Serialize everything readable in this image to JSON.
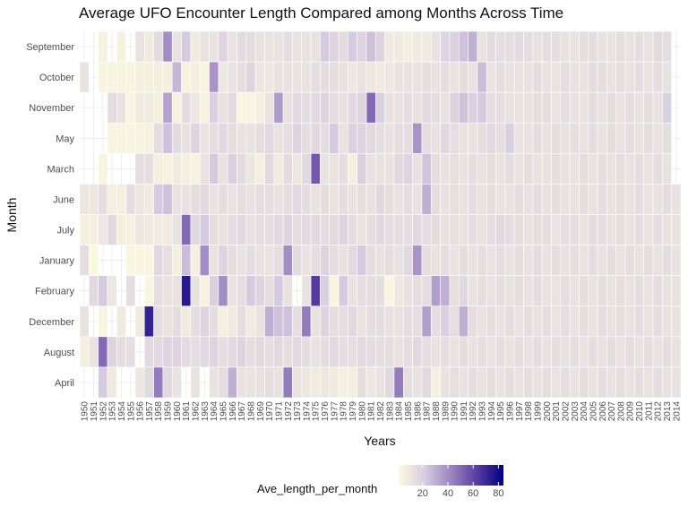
{
  "chart_data": {
    "type": "heatmap",
    "title": "Average UFO Encounter Length Compared among Months Across Time",
    "xlabel": "Years",
    "ylabel": "Month",
    "months": [
      "September",
      "October",
      "November",
      "May",
      "March",
      "June",
      "July",
      "January",
      "February",
      "December",
      "August",
      "April"
    ],
    "years": [
      1950,
      1951,
      1952,
      1953,
      1954,
      1955,
      1956,
      1957,
      1958,
      1959,
      1960,
      1961,
      1962,
      1963,
      1964,
      1965,
      1966,
      1967,
      1968,
      1969,
      1970,
      1971,
      1972,
      1973,
      1974,
      1975,
      1976,
      1977,
      1978,
      1979,
      1980,
      1981,
      1982,
      1983,
      1984,
      1985,
      1986,
      1987,
      1988,
      1989,
      1990,
      1991,
      1992,
      1993,
      1994,
      1995,
      1996,
      1997,
      1998,
      1999,
      2000,
      2001,
      2002,
      2003,
      2004,
      2005,
      2006,
      2007,
      2008,
      2009,
      2010,
      2011,
      2012,
      2013,
      2014
    ],
    "xlim": [
      1950,
      2014
    ],
    "values": {
      "September": [
        null,
        null,
        5,
        null,
        5,
        null,
        12,
        8,
        15,
        40,
        12,
        22,
        8,
        12,
        12,
        18,
        12,
        15,
        14,
        12,
        12,
        12,
        14,
        12,
        12,
        12,
        22,
        18,
        15,
        22,
        18,
        25,
        18,
        8,
        8,
        6,
        8,
        8,
        12,
        18,
        20,
        25,
        30,
        12,
        15,
        14,
        14,
        15,
        14,
        12,
        14,
        14,
        12,
        12,
        14,
        14,
        12,
        12,
        14,
        12,
        14,
        12,
        15,
        14,
        null
      ],
      "October": [
        12,
        null,
        4,
        4,
        4,
        4,
        6,
        6,
        6,
        6,
        28,
        5,
        6,
        4,
        38,
        10,
        12,
        14,
        18,
        10,
        10,
        12,
        12,
        12,
        12,
        14,
        14,
        14,
        12,
        10,
        12,
        10,
        8,
        10,
        12,
        12,
        12,
        14,
        12,
        14,
        12,
        14,
        12,
        26,
        12,
        14,
        12,
        12,
        12,
        14,
        12,
        12,
        14,
        12,
        12,
        14,
        14,
        12,
        14,
        12,
        14,
        12,
        14,
        12,
        null
      ],
      "November": [
        null,
        null,
        null,
        15,
        12,
        3,
        8,
        8,
        6,
        34,
        5,
        15,
        10,
        5,
        20,
        12,
        15,
        4,
        4,
        6,
        12,
        36,
        12,
        16,
        14,
        16,
        18,
        14,
        12,
        16,
        18,
        50,
        20,
        12,
        12,
        14,
        12,
        16,
        14,
        12,
        18,
        25,
        20,
        22,
        14,
        14,
        12,
        12,
        12,
        14,
        14,
        12,
        14,
        12,
        12,
        14,
        12,
        14,
        12,
        14,
        12,
        14,
        12,
        20,
        null
      ],
      "May": [
        null,
        null,
        null,
        4,
        4,
        4,
        5,
        5,
        14,
        25,
        15,
        12,
        18,
        12,
        14,
        16,
        14,
        12,
        12,
        14,
        16,
        12,
        14,
        18,
        14,
        16,
        14,
        22,
        12,
        20,
        18,
        16,
        14,
        12,
        14,
        14,
        38,
        14,
        12,
        16,
        14,
        12,
        12,
        14,
        16,
        14,
        20,
        12,
        12,
        14,
        12,
        14,
        12,
        14,
        12,
        14,
        12,
        14,
        12,
        14,
        12,
        14,
        12,
        14,
        null
      ],
      "March": [
        null,
        null,
        3,
        null,
        null,
        null,
        14,
        14,
        6,
        5,
        8,
        6,
        5,
        12,
        22,
        12,
        20,
        15,
        10,
        6,
        16,
        8,
        15,
        10,
        16,
        55,
        12,
        12,
        14,
        6,
        20,
        12,
        12,
        12,
        16,
        18,
        12,
        24,
        14,
        12,
        14,
        12,
        14,
        12,
        14,
        12,
        14,
        12,
        14,
        12,
        12,
        14,
        12,
        12,
        14,
        12,
        14,
        12,
        14,
        12,
        14,
        12,
        14,
        12,
        null
      ],
      "June": [
        10,
        10,
        14,
        6,
        6,
        14,
        10,
        8,
        22,
        25,
        12,
        12,
        14,
        16,
        12,
        14,
        12,
        14,
        12,
        14,
        14,
        12,
        14,
        16,
        14,
        12,
        14,
        12,
        14,
        12,
        14,
        12,
        16,
        14,
        12,
        14,
        12,
        30,
        14,
        12,
        14,
        12,
        14,
        12,
        14,
        12,
        12,
        14,
        12,
        14,
        12,
        14,
        12,
        12,
        14,
        12,
        14,
        12,
        14,
        12,
        14,
        12,
        12,
        14,
        12
      ],
      "July": [
        6,
        6,
        10,
        16,
        6,
        6,
        10,
        8,
        8,
        8,
        12,
        50,
        16,
        22,
        14,
        12,
        14,
        16,
        12,
        14,
        14,
        16,
        18,
        14,
        16,
        16,
        14,
        16,
        18,
        14,
        12,
        14,
        16,
        14,
        14,
        14,
        16,
        14,
        14,
        12,
        14,
        12,
        14,
        12,
        14,
        16,
        14,
        14,
        12,
        14,
        14,
        12,
        14,
        14,
        12,
        14,
        14,
        12,
        14,
        12,
        14,
        12,
        14,
        12,
        12
      ],
      "January": [
        14,
        2,
        null,
        null,
        null,
        3,
        3,
        3,
        16,
        14,
        6,
        26,
        6,
        40,
        12,
        18,
        14,
        12,
        14,
        12,
        12,
        14,
        40,
        15,
        12,
        14,
        18,
        14,
        12,
        16,
        22,
        14,
        12,
        14,
        12,
        16,
        38,
        14,
        12,
        14,
        12,
        14,
        12,
        14,
        12,
        14,
        12,
        14,
        12,
        14,
        12,
        14,
        12,
        14,
        12,
        14,
        12,
        14,
        12,
        14,
        12,
        14,
        12,
        14,
        12
      ],
      "February": [
        null,
        16,
        22,
        10,
        null,
        14,
        null,
        3,
        14,
        12,
        12,
        75,
        12,
        5,
        20,
        40,
        12,
        14,
        22,
        18,
        14,
        22,
        12,
        null,
        12,
        64,
        20,
        3,
        22,
        12,
        14,
        14,
        14,
        3,
        10,
        12,
        14,
        14,
        35,
        30,
        14,
        16,
        12,
        14,
        12,
        14,
        12,
        14,
        12,
        14,
        12,
        12,
        14,
        12,
        14,
        12,
        14,
        12,
        14,
        12,
        14,
        12,
        14,
        12,
        12
      ],
      "December": [
        12,
        null,
        3,
        null,
        8,
        null,
        8,
        72,
        14,
        12,
        14,
        8,
        14,
        18,
        14,
        6,
        8,
        14,
        8,
        12,
        30,
        25,
        25,
        14,
        45,
        12,
        18,
        14,
        14,
        16,
        12,
        14,
        14,
        12,
        12,
        14,
        14,
        35,
        14,
        20,
        14,
        30,
        14,
        12,
        14,
        12,
        14,
        12,
        14,
        12,
        14,
        12,
        14,
        12,
        14,
        12,
        14,
        12,
        14,
        12,
        14,
        12,
        14,
        12,
        12
      ],
      "August": [
        6,
        12,
        50,
        18,
        14,
        14,
        null,
        16,
        16,
        18,
        18,
        15,
        14,
        16,
        18,
        14,
        16,
        18,
        14,
        16,
        14,
        16,
        14,
        16,
        14,
        12,
        14,
        16,
        14,
        14,
        16,
        14,
        14,
        14,
        12,
        14,
        16,
        14,
        12,
        14,
        12,
        14,
        12,
        14,
        12,
        14,
        12,
        14,
        12,
        14,
        12,
        14,
        12,
        14,
        12,
        14,
        12,
        14,
        12,
        14,
        12,
        14,
        12,
        14,
        12
      ],
      "April": [
        null,
        null,
        22,
        8,
        null,
        null,
        10,
        16,
        45,
        16,
        12,
        null,
        12,
        null,
        12,
        14,
        30,
        12,
        12,
        12,
        14,
        12,
        45,
        12,
        10,
        8,
        10,
        8,
        6,
        6,
        14,
        10,
        12,
        16,
        45,
        14,
        12,
        16,
        6,
        12,
        14,
        12,
        14,
        12,
        14,
        12,
        14,
        12,
        14,
        12,
        14,
        12,
        14,
        12,
        14,
        12,
        14,
        12,
        14,
        12,
        14,
        12,
        14,
        12,
        12
      ]
    },
    "legend": {
      "title": "Ave_length_per_month",
      "ticks": [
        20,
        40,
        60,
        80
      ],
      "range": [
        1,
        84
      ],
      "colors": [
        "#fcfbe0",
        "#d6cce0",
        "#9b85c0",
        "#5a3ba0",
        "#000080"
      ]
    }
  }
}
